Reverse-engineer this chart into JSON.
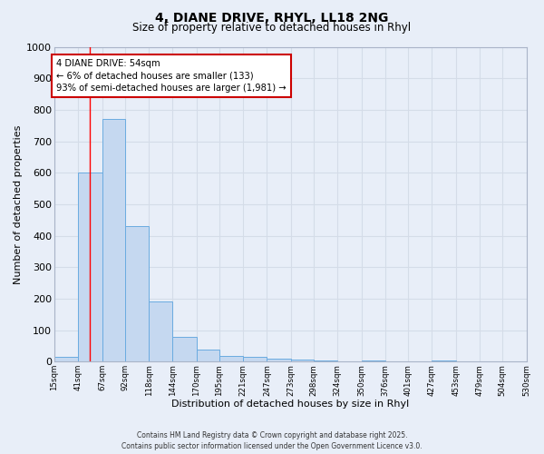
{
  "title_line1": "4, DIANE DRIVE, RHYL, LL18 2NG",
  "title_line2": "Size of property relative to detached houses in Rhyl",
  "xlabel": "Distribution of detached houses by size in Rhyl",
  "ylabel": "Number of detached properties",
  "bin_edges": [
    15,
    41,
    67,
    92,
    118,
    144,
    170,
    195,
    221,
    247,
    273,
    298,
    324,
    350,
    376,
    401,
    427,
    453,
    479,
    504,
    530
  ],
  "bar_heights": [
    15,
    600,
    770,
    430,
    190,
    78,
    38,
    18,
    15,
    10,
    5,
    2,
    0,
    2,
    0,
    0,
    2,
    0,
    0,
    0
  ],
  "bar_color": "#c5d8f0",
  "bar_edgecolor": "#6aabe0",
  "tick_labels": [
    "15sqm",
    "41sqm",
    "67sqm",
    "92sqm",
    "118sqm",
    "144sqm",
    "170sqm",
    "195sqm",
    "221sqm",
    "247sqm",
    "273sqm",
    "298sqm",
    "324sqm",
    "350sqm",
    "376sqm",
    "401sqm",
    "427sqm",
    "453sqm",
    "479sqm",
    "504sqm",
    "530sqm"
  ],
  "red_line_x": 54,
  "ylim": [
    0,
    1000
  ],
  "yticks": [
    0,
    100,
    200,
    300,
    400,
    500,
    600,
    700,
    800,
    900,
    1000
  ],
  "annotation_text": "4 DIANE DRIVE: 54sqm\n← 6% of detached houses are smaller (133)\n93% of semi-detached houses are larger (1,981) →",
  "annotation_box_facecolor": "#ffffff",
  "annotation_box_edgecolor": "#cc0000",
  "bg_color": "#e8eef8",
  "grid_color": "#d4dce8",
  "footer_line1": "Contains HM Land Registry data © Crown copyright and database right 2025.",
  "footer_line2": "Contains public sector information licensed under the Open Government Licence v3.0."
}
